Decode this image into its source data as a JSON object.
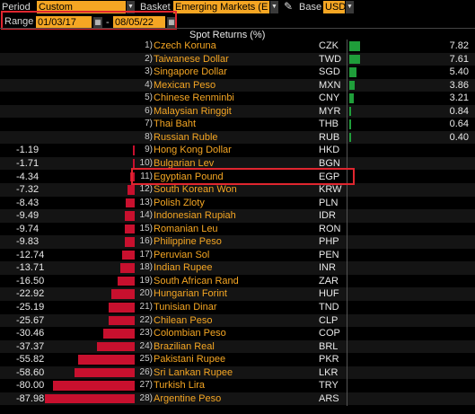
{
  "toolbar": {
    "period_label": "Period",
    "period_value": "Custom",
    "basket_label": "Basket",
    "basket_value": "Emerging Markets (E",
    "base_label": "Base",
    "base_value": "USD",
    "range_label": "Range",
    "range_start": "01/03/17",
    "range_end": "08/05/22",
    "range_sep": "-"
  },
  "header": {
    "title": "Spot Returns (%)"
  },
  "colors": {
    "positive": "#1f9e3a",
    "negative": "#c8102e",
    "accent": "#f5a623",
    "highlight": "#e0262f"
  },
  "chart_data": {
    "type": "bar",
    "title": "Spot Returns (%)",
    "ylabel": "",
    "rows": [
      {
        "rank": "1)",
        "name": "Czech Koruna",
        "code": "CZK",
        "value": 7.82,
        "label": "7.82"
      },
      {
        "rank": "2)",
        "name": "Taiwanese Dollar",
        "code": "TWD",
        "value": 7.61,
        "label": "7.61"
      },
      {
        "rank": "3)",
        "name": "Singapore Dollar",
        "code": "SGD",
        "value": 5.4,
        "label": "5.40"
      },
      {
        "rank": "4)",
        "name": "Mexican Peso",
        "code": "MXN",
        "value": 3.86,
        "label": "3.86"
      },
      {
        "rank": "5)",
        "name": "Chinese Renminbi",
        "code": "CNY",
        "value": 3.21,
        "label": "3.21"
      },
      {
        "rank": "6)",
        "name": "Malaysian Ringgit",
        "code": "MYR",
        "value": 0.84,
        "label": "0.84"
      },
      {
        "rank": "7)",
        "name": "Thai Baht",
        "code": "THB",
        "value": 0.64,
        "label": "0.64"
      },
      {
        "rank": "8)",
        "name": "Russian Ruble",
        "code": "RUB",
        "value": 0.4,
        "label": "0.40"
      },
      {
        "rank": "9)",
        "name": "Hong Kong Dollar",
        "code": "HKD",
        "value": -1.19,
        "label": "-1.19"
      },
      {
        "rank": "10)",
        "name": "Bulgarian Lev",
        "code": "BGN",
        "value": -1.71,
        "label": "-1.71"
      },
      {
        "rank": "11)",
        "name": "Egyptian Pound",
        "code": "EGP",
        "value": -4.34,
        "label": "-4.34"
      },
      {
        "rank": "12)",
        "name": "South Korean Won",
        "code": "KRW",
        "value": -7.32,
        "label": "-7.32"
      },
      {
        "rank": "13)",
        "name": "Polish Zloty",
        "code": "PLN",
        "value": -8.43,
        "label": "-8.43"
      },
      {
        "rank": "14)",
        "name": "Indonesian Rupiah",
        "code": "IDR",
        "value": -9.49,
        "label": "-9.49"
      },
      {
        "rank": "15)",
        "name": "Romanian Leu",
        "code": "RON",
        "value": -9.74,
        "label": "-9.74"
      },
      {
        "rank": "16)",
        "name": "Philippine Peso",
        "code": "PHP",
        "value": -9.83,
        "label": "-9.83"
      },
      {
        "rank": "17)",
        "name": "Peruvian Sol",
        "code": "PEN",
        "value": -12.74,
        "label": "-12.74"
      },
      {
        "rank": "18)",
        "name": "Indian Rupee",
        "code": "INR",
        "value": -13.71,
        "label": "-13.71"
      },
      {
        "rank": "19)",
        "name": "South African Rand",
        "code": "ZAR",
        "value": -16.5,
        "label": "-16.50"
      },
      {
        "rank": "20)",
        "name": "Hungarian Forint",
        "code": "HUF",
        "value": -22.92,
        "label": "-22.92"
      },
      {
        "rank": "21)",
        "name": "Tunisian Dinar",
        "code": "TND",
        "value": -25.19,
        "label": "-25.19"
      },
      {
        "rank": "22)",
        "name": "Chilean Peso",
        "code": "CLP",
        "value": -25.67,
        "label": "-25.67"
      },
      {
        "rank": "23)",
        "name": "Colombian Peso",
        "code": "COP",
        "value": -30.46,
        "label": "-30.46"
      },
      {
        "rank": "24)",
        "name": "Brazilian Real",
        "code": "BRL",
        "value": -37.37,
        "label": "-37.37"
      },
      {
        "rank": "25)",
        "name": "Pakistani Rupee",
        "code": "PKR",
        "value": -55.82,
        "label": "-55.82"
      },
      {
        "rank": "26)",
        "name": "Sri Lankan Rupee",
        "code": "LKR",
        "value": -58.6,
        "label": "-58.60"
      },
      {
        "rank": "27)",
        "name": "Turkish Lira",
        "code": "TRY",
        "value": -80.0,
        "label": "-80.00"
      },
      {
        "rank": "28)",
        "name": "Argentine Peso",
        "code": "ARS",
        "value": -87.98,
        "label": "-87.98"
      }
    ],
    "highlighted_code": "EGP"
  }
}
